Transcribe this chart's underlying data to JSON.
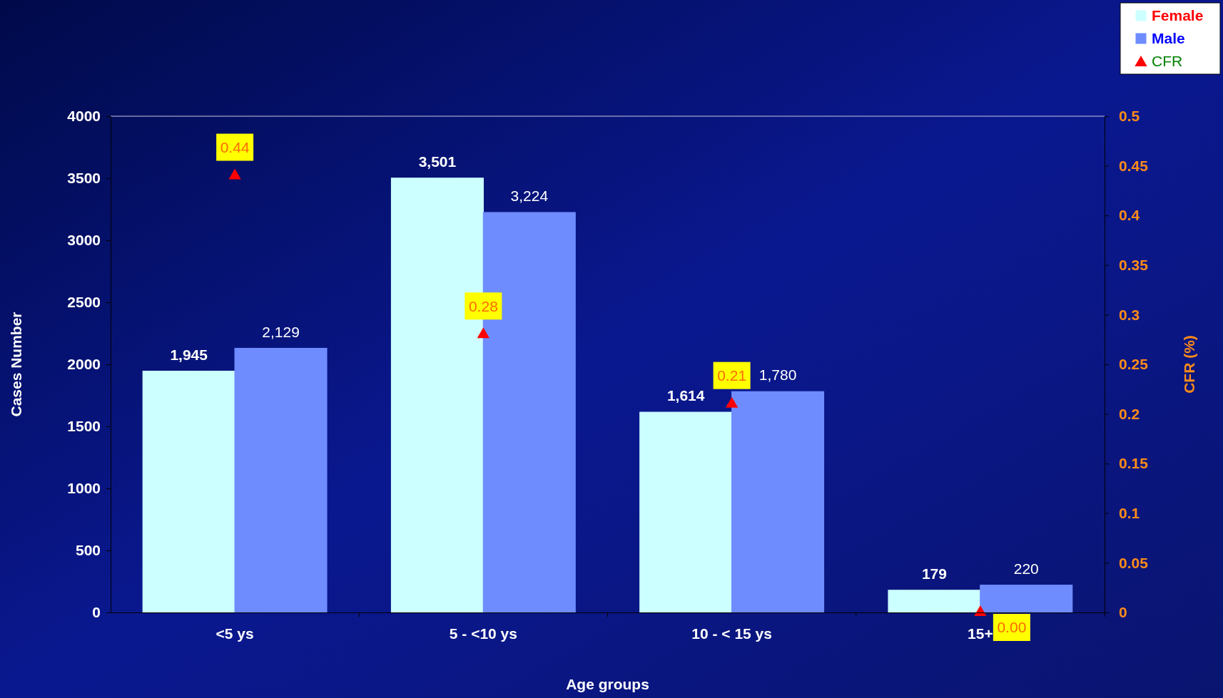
{
  "chart_data": {
    "type": "bar",
    "categories": [
      "<5 ys",
      "5 - <10 ys",
      "10 - < 15 ys",
      "15+"
    ],
    "xlabel": "Age groups",
    "ylabel": "Cases Number",
    "y2label": "CFR (%)",
    "series": [
      {
        "name": "Female",
        "color": "#ccffff",
        "values": [
          1945,
          3501,
          1614,
          179
        ],
        "value_labels": [
          "1,945",
          "3,501",
          "1,614",
          "179"
        ]
      },
      {
        "name": "Male",
        "color": "#6f8cff",
        "values": [
          2129,
          3224,
          1780,
          220
        ],
        "value_labels": [
          "2,129",
          "3,224",
          "1,780",
          "220"
        ]
      },
      {
        "name": "CFR",
        "type": "scatter",
        "axis": "y2",
        "color": "#ff0000",
        "marker": "triangle",
        "values": [
          0.44,
          0.28,
          0.21,
          0
        ],
        "value_labels": [
          "0.44",
          "0.28",
          "0.21",
          "0.00"
        ]
      }
    ],
    "ylim": [
      0,
      4000
    ],
    "yticks": [
      0,
      500,
      1000,
      1500,
      2000,
      2500,
      3000,
      3500,
      4000
    ],
    "y2lim": [
      0,
      0.5
    ],
    "y2ticks": [
      0,
      0.05,
      0.1,
      0.15,
      0.2,
      0.25,
      0.3,
      0.35,
      0.4,
      0.45,
      0.5
    ],
    "grid": false,
    "legend": "top right"
  }
}
